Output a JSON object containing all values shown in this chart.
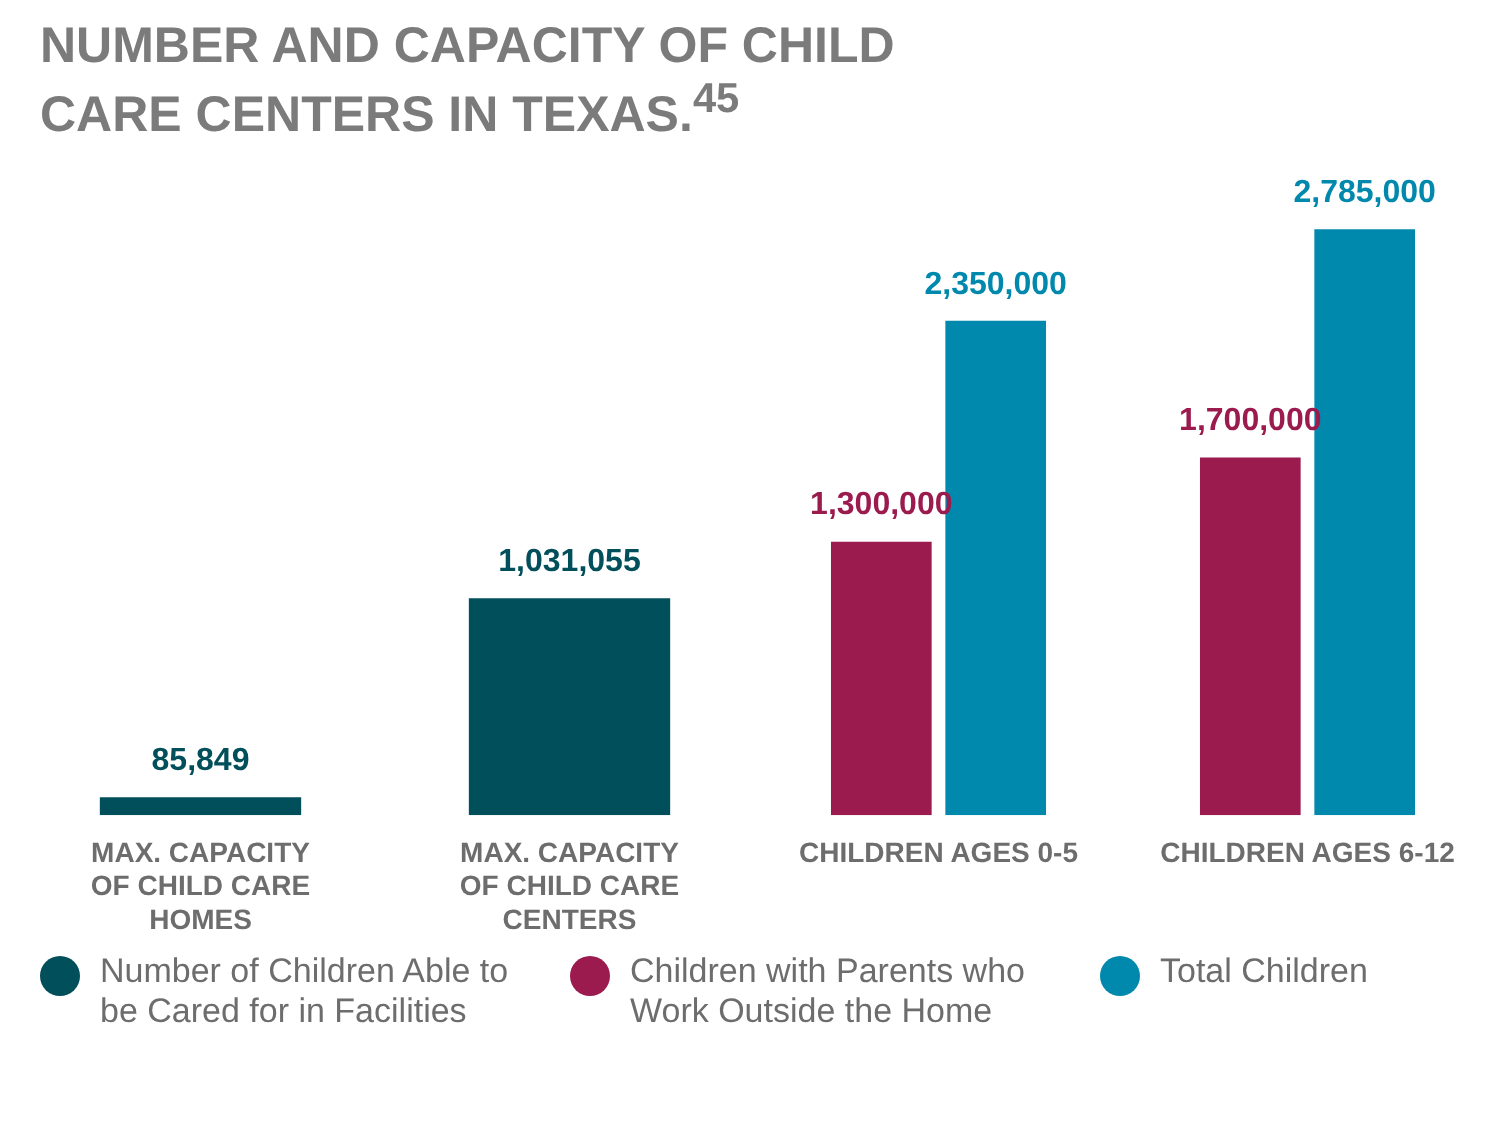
{
  "chart_data": {
    "type": "bar",
    "title": "NUMBER AND CAPACITY OF CHILD CARE CENTERS IN TEXAS.$^{45}$",
    "categories": [
      "MAX. CAPACITY OF CHILD CARE HOMES",
      "MAX. CAPACITY OF CHILD CARE CENTERS",
      "CHILDREN AGES 0-5",
      "CHILDREN AGES 6-12"
    ],
    "series": [
      {
        "name": "Number of Children Able to be Cared for in Facilities",
        "color": "#004f5a",
        "values": [
          85849,
          1031055,
          null,
          null
        ],
        "value_labels": [
          "85,849",
          "1,031,055",
          null,
          null
        ]
      },
      {
        "name": "Children with Parents who Work Outside the Home",
        "color": "#9b1b4f",
        "values": [
          null,
          null,
          1300000,
          1700000
        ],
        "value_labels": [
          null,
          null,
          "1,300,000",
          "1,700,000"
        ]
      },
      {
        "name": "Total Children",
        "color": "#0089ad",
        "values": [
          null,
          null,
          2350000,
          2785000
        ],
        "value_labels": [
          null,
          null,
          "2,350,000",
          "2,785,000"
        ]
      }
    ],
    "legend": "bottom"
  }
}
